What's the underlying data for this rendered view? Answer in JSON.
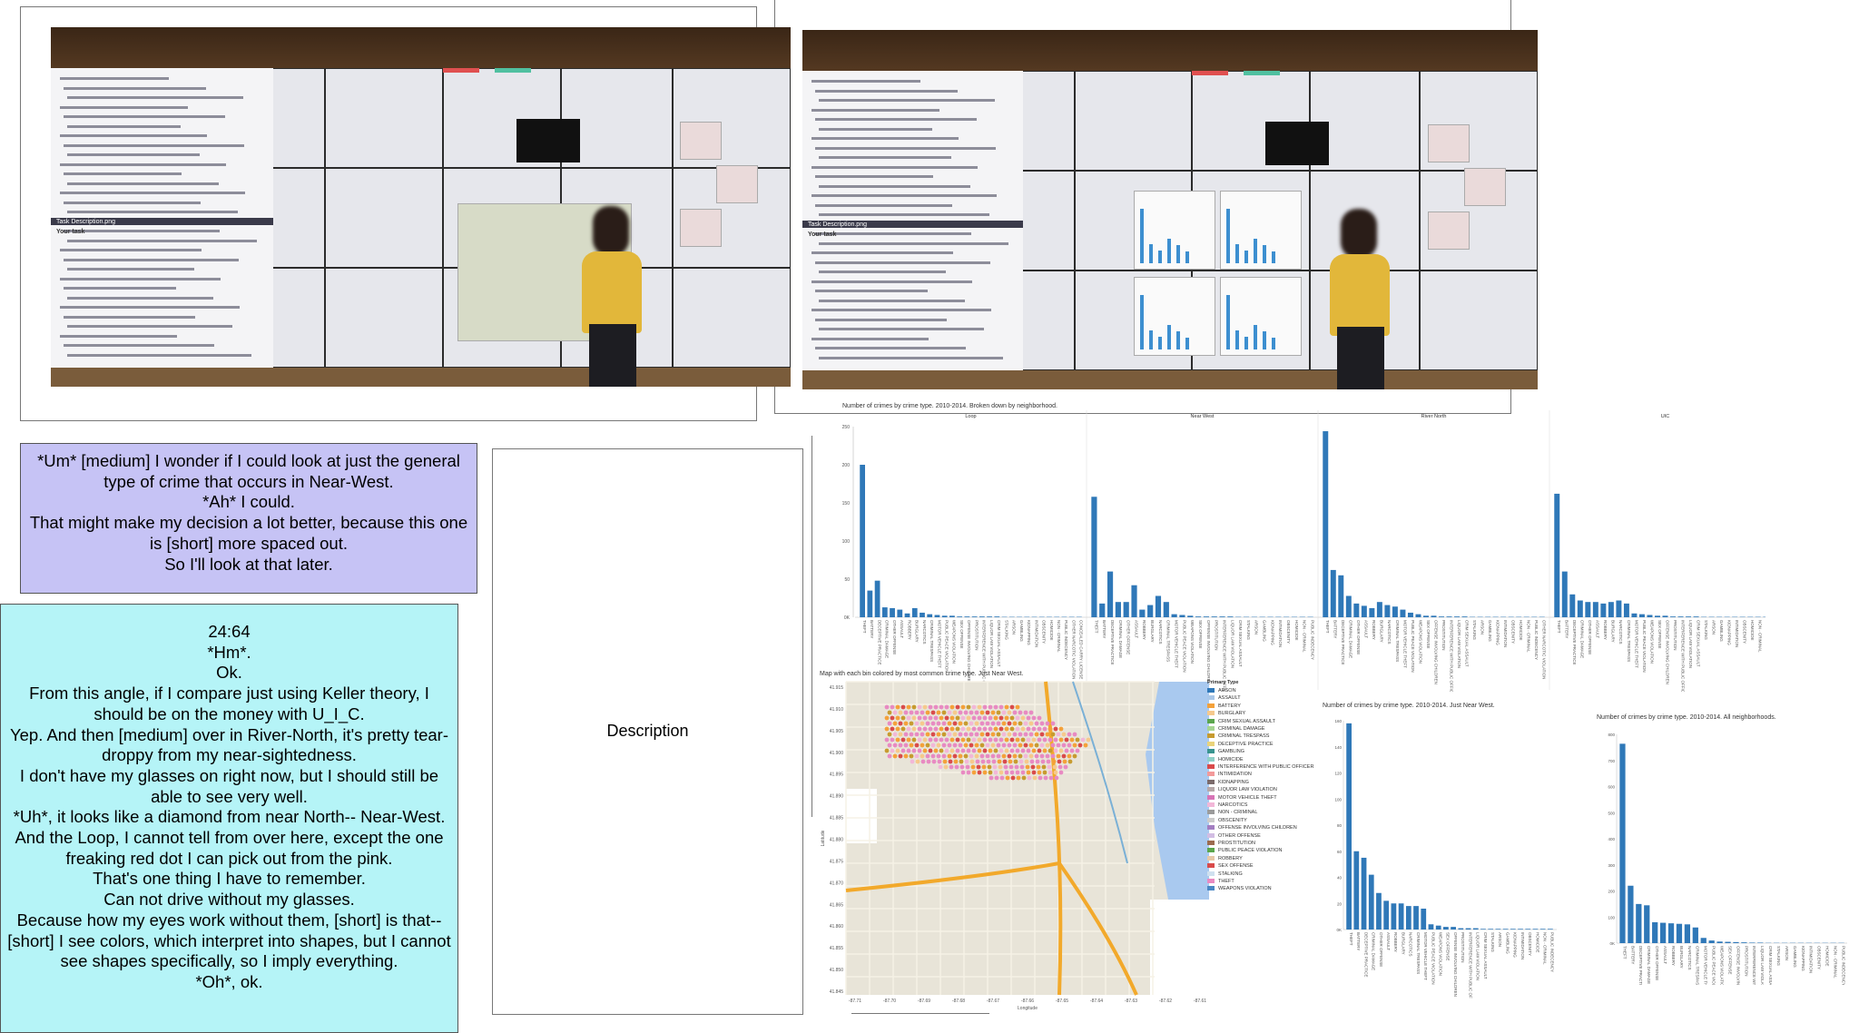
{
  "transcript_purple": {
    "lines": [
      "*Um* [medium] I wonder if I could look at just the general type of crime that occurs in Near-West.",
      "*Ah* I could.",
      "That might make my decision a lot better, because this one is [short] more spaced out.",
      "So I'll look at that later."
    ],
    "bg": "#c6c3f5"
  },
  "transcript_cyan": {
    "lines": [
      "24:64",
      "*Hm*.",
      "Ok.",
      "From this angle, if I compare just using Keller theory, I should be on the money with U_I_C.",
      "Yep. And then [medium] over in River-North, it's pretty tear-droppy from my near-sightedness.",
      "I don't have my glasses on right now, but I should still be able to see very well.",
      "*Uh*, it looks like a diamond from near North-- Near-West. And the Loop, I cannot tell from over here, except the one freaking red dot I can pick out from the pink.",
      "That's one thing I have to remember.",
      "Can not drive without my glasses.",
      "Because how my eyes work without them, [short] is that-- [short] I see colors, which interpret into shapes, but I cannot see shapes specifically, so I imply everything.",
      "*Oh*, ok."
    ],
    "bg": "#b5f4f7"
  },
  "description_box": {
    "label": "Description"
  },
  "photo1": {
    "screen_title": "Task Description.png",
    "task_heading": "Your task"
  },
  "photo2": {
    "screen_title": "Task Description.png",
    "task_heading": "Your task"
  },
  "charts": {
    "bar_color": "#2f78b8",
    "top": {
      "title": "Number of crimes by crime type.   2010-2014.  Broken down by neighborhood.",
      "panels": [
        "Loop",
        "Near West",
        "River North",
        "UIC"
      ],
      "values": [
        [
          200,
          35,
          48,
          13,
          12,
          10,
          5,
          12,
          6,
          4,
          3,
          2,
          2,
          1,
          1,
          1,
          1,
          1,
          1,
          0.5,
          0.5,
          0.5,
          0.5,
          0.5,
          0.5,
          0.5,
          0.5,
          0.5,
          0.5,
          0.5
        ],
        [
          158,
          18,
          60,
          20,
          20,
          42,
          10,
          16,
          28,
          20,
          4,
          3,
          2,
          1,
          1,
          1,
          1,
          1,
          0.5,
          0.5,
          0.5,
          0.5,
          0.5,
          0.5,
          0.5,
          0.5,
          0.5,
          0.5
        ],
        [
          244,
          62,
          55,
          28,
          18,
          15,
          12,
          20,
          16,
          14,
          10,
          6,
          4,
          2,
          2,
          1,
          1,
          1,
          1,
          0.5,
          0.5,
          0.5,
          0.5,
          0.5,
          0.5,
          0.5,
          0.5,
          0.5,
          0.5
        ],
        [
          162,
          60,
          30,
          22,
          20,
          20,
          18,
          20,
          22,
          18,
          5,
          4,
          3,
          2,
          2,
          1,
          1,
          1,
          1,
          0.5,
          0.5,
          0.5,
          0.5,
          0.5,
          0.5,
          0.5,
          0.5,
          0.5,
          0.5
        ]
      ],
      "yticks": [
        "250",
        "200",
        "150",
        "100",
        "50",
        "0K"
      ]
    },
    "map": {
      "title": "Map with each bin colored by most common crime type.  Just Near West.",
      "legend_title": "Primary Type",
      "legend": [
        [
          "ARSON",
          "#2f78b8"
        ],
        [
          "ASSAULT",
          "#a9c7e8"
        ],
        [
          "BATTERY",
          "#f4a13a"
        ],
        [
          "BURGLARY",
          "#f6c98c"
        ],
        [
          "CRIM SEXUAL ASSAULT",
          "#5ba64d"
        ],
        [
          "CRIMINAL DAMAGE",
          "#a5d592"
        ],
        [
          "CRIMINAL TRESPASS",
          "#c79b2f"
        ],
        [
          "DECEPTIVE PRACTICE",
          "#e9d37a"
        ],
        [
          "GAMBLING",
          "#39948f"
        ],
        [
          "HOMICIDE",
          "#8fd1c8"
        ],
        [
          "INTERFERENCE WITH PUBLIC OFFICER",
          "#d94b4b"
        ],
        [
          "INTIMIDATION",
          "#f39a9a"
        ],
        [
          "KIDNAPPING",
          "#7b6b6b"
        ],
        [
          "LIQUOR LAW VIOLATION",
          "#b6a9a9"
        ],
        [
          "MOTOR VEHICLE THEFT",
          "#d774b6"
        ],
        [
          "NARCOTICS",
          "#f2b7d8"
        ],
        [
          "NON - CRIMINAL",
          "#9b9b9b"
        ],
        [
          "OBSCENITY",
          "#cccccc"
        ],
        [
          "OFFENSE INVOLVING CHILDREN",
          "#a37ec1"
        ],
        [
          "OTHER OFFENSE",
          "#d2bde3"
        ],
        [
          "PROSTITUTION",
          "#9c6b4f"
        ],
        [
          "PUBLIC PEACE VIOLATION",
          "#5ba64d"
        ],
        [
          "ROBBERY",
          "#e6c9a8"
        ],
        [
          "SEX OFFENSE",
          "#d94b4b"
        ],
        [
          "STALKING",
          "#cfe0ef"
        ],
        [
          "THEFT",
          "#e88ac2"
        ],
        [
          "WEAPONS VIOLATION",
          "#4a87c4"
        ]
      ],
      "yticks": [
        "41.915",
        "41.910",
        "41.905",
        "41.900",
        "41.895",
        "41.890",
        "41.885",
        "41.880",
        "41.875",
        "41.870",
        "41.865",
        "41.860",
        "41.855",
        "41.850",
        "41.845"
      ],
      "xticks": [
        "-87.71",
        "-87.70",
        "-87.69",
        "-87.68",
        "-87.67",
        "-87.66",
        "-87.65",
        "-87.64",
        "-87.63",
        "-87.62",
        "-87.61"
      ],
      "xlabel": "Longitude",
      "ylabel": "Latitude"
    },
    "near_west": {
      "title": "Number of crimes by crime type.   2010-2014.  Just Near West.",
      "values": [
        158,
        60,
        55,
        42,
        28,
        22,
        20,
        20,
        18,
        18,
        16,
        4,
        3,
        2,
        2,
        1,
        1,
        1,
        0.5,
        0.5,
        0.5,
        0.5,
        0.5,
        0.5,
        0.5,
        0.5,
        0.5,
        0.5
      ],
      "yticks": [
        "160",
        "140",
        "120",
        "100",
        "80",
        "60",
        "40",
        "20",
        "0K"
      ]
    },
    "all": {
      "title": "Number of crimes by crime type.   2010-2014.  All neighborhoods.",
      "values": [
        764,
        220,
        150,
        145,
        80,
        78,
        76,
        74,
        72,
        60,
        20,
        10,
        6,
        5,
        4,
        3,
        2,
        2,
        1,
        1,
        1,
        1,
        1,
        1,
        1,
        1,
        1,
        1
      ],
      "yticks": [
        "800",
        "700",
        "600",
        "500",
        "400",
        "300",
        "200",
        "100",
        "0K"
      ]
    },
    "crime_types": [
      "THEFT",
      "BATTERY",
      "DECEPTIVE PRACTICE",
      "CRIMINAL DAMAGE",
      "OTHER OFFENSE",
      "ASSAULT",
      "ROBBERY",
      "BURGLARY",
      "NARCOTICS",
      "CRIMINAL TRESPASS",
      "MOTOR VEHICLE THEFT",
      "PUBLIC PEACE VIOLATION",
      "WEAPONS VIOLATION",
      "SEX OFFENSE",
      "OFFENSE INVOLVING CHILDREN",
      "PROSTITUTION",
      "INTERFERENCE WITH PUBLIC OFFICER",
      "LIQUOR LAW VIOLATION",
      "CRIM SEXUAL ASSAULT",
      "STALKING",
      "ARSON",
      "GAMBLING",
      "KIDNAPPING",
      "INTIMIDATION",
      "OBSCENITY",
      "HOMICIDE",
      "NON - CRIMINAL",
      "PUBLIC INDECENCY",
      "OTHER NARCOTIC VIOLATION",
      "CONCEALED CARRY LICENSE"
    ]
  }
}
